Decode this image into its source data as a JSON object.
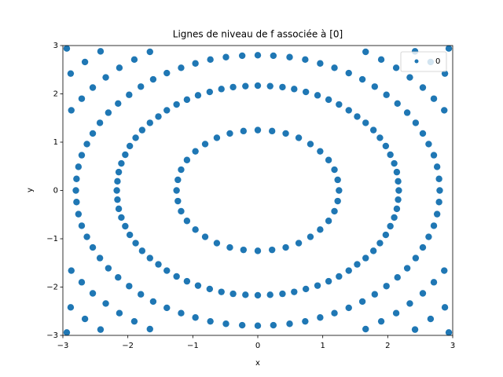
{
  "chart_data": {
    "type": "scatter",
    "title": "Lignes de niveau de f associée à [0]",
    "x_label": "x",
    "y_label": "y",
    "xlim": [
      -3,
      3
    ],
    "ylim": [
      -3,
      3
    ],
    "xticks": [
      {
        "value": -3,
        "label": "−3"
      },
      {
        "value": -2,
        "label": "−2"
      },
      {
        "value": -1,
        "label": "−1"
      },
      0,
      1,
      2,
      3
    ],
    "yticks": [
      {
        "value": -3,
        "label": "−3"
      },
      {
        "value": -2,
        "label": "−2"
      },
      {
        "value": -1,
        "label": "−1"
      },
      0,
      1,
      2,
      3
    ],
    "legend": "upper right",
    "grid": false,
    "series": [
      {
        "name": "0",
        "color": "#1f77b4",
        "x": [
          1.25,
          1.23,
          1.18,
          1.09,
          0.96,
          0.81,
          0.63,
          0.43,
          0.22,
          0,
          -0.22,
          -0.43,
          -0.63,
          -0.81,
          -0.96,
          -1.09,
          -1.18,
          -1.23,
          -1.25,
          -1.23,
          -1.18,
          -1.09,
          -0.96,
          -0.81,
          -0.63,
          -0.43,
          -0.22,
          0,
          0.22,
          0.43,
          0.63,
          0.81,
          0.96,
          1.09,
          1.18,
          1.23,
          2.17,
          2.16,
          2.14,
          2.1,
          2.04,
          1.97,
          1.88,
          1.78,
          1.66,
          1.53,
          1.4,
          1.25,
          1.09,
          0.92,
          0.74,
          0.56,
          0.38,
          0.19,
          0,
          -0.19,
          -0.38,
          -0.56,
          -0.74,
          -0.92,
          -1.09,
          -1.25,
          -1.4,
          -1.53,
          -1.66,
          -1.78,
          -1.88,
          -1.97,
          -2.04,
          -2.1,
          -2.14,
          -2.16,
          -2.17,
          -2.16,
          -2.14,
          -2.1,
          -2.04,
          -1.97,
          -1.88,
          -1.78,
          -1.66,
          -1.53,
          -1.4,
          -1.25,
          -1.09,
          -0.92,
          -0.74,
          -0.56,
          -0.38,
          -0.19,
          0,
          0.19,
          0.38,
          0.56,
          0.74,
          0.92,
          1.09,
          1.25,
          1.4,
          1.53,
          1.66,
          1.78,
          1.88,
          1.97,
          2.04,
          2.1,
          2.14,
          2.16,
          2.8,
          2.79,
          2.76,
          2.71,
          2.63,
          2.54,
          2.43,
          2.3,
          2.15,
          1.98,
          1.8,
          1.61,
          1.4,
          1.18,
          0.96,
          0.73,
          0.49,
          0.24,
          0,
          -0.24,
          -0.49,
          -0.73,
          -0.96,
          -1.18,
          -1.4,
          -1.61,
          -1.8,
          -1.98,
          -2.15,
          -2.3,
          -2.43,
          -2.54,
          -2.63,
          -2.71,
          -2.76,
          -2.79,
          -2.8,
          -2.79,
          -2.76,
          -2.71,
          -2.63,
          -2.54,
          -2.43,
          -2.3,
          -2.15,
          -1.98,
          -1.8,
          -1.61,
          -1.4,
          -1.18,
          -0.96,
          -0.73,
          -0.49,
          -0.24,
          0,
          0.24,
          0.49,
          0.73,
          0.96,
          1.18,
          1.4,
          1.61,
          1.8,
          1.98,
          2.15,
          2.3,
          2.43,
          2.54,
          2.63,
          2.71,
          2.76,
          2.79,
          2.87,
          2.71,
          2.54,
          2.34,
          2.13,
          1.9,
          1.66,
          -2.87,
          -2.71,
          -2.54,
          -2.34,
          -2.13,
          -1.9,
          -1.66,
          -2.87,
          -2.71,
          -2.54,
          -2.34,
          -2.13,
          -1.9,
          -1.66,
          2.87,
          2.71,
          2.54,
          2.34,
          2.13,
          1.9,
          1.66,
          2.88,
          2.66,
          2.42,
          -2.88,
          -2.66,
          -2.42,
          -2.88,
          -2.66,
          -2.42,
          2.88,
          2.66,
          2.42,
          2.94,
          -2.94,
          -2.94,
          2.94
        ],
        "y": [
          0,
          0.22,
          0.43,
          0.63,
          0.81,
          0.96,
          1.09,
          1.18,
          1.23,
          1.25,
          1.23,
          1.18,
          1.09,
          0.96,
          0.81,
          0.63,
          0.43,
          0.22,
          0,
          -0.22,
          -0.43,
          -0.63,
          -0.81,
          -0.96,
          -1.09,
          -1.18,
          -1.23,
          -1.25,
          -1.23,
          -1.18,
          -1.09,
          -0.96,
          -0.81,
          -0.63,
          -0.43,
          -0.22,
          0,
          0.19,
          0.38,
          0.56,
          0.74,
          0.92,
          1.09,
          1.25,
          1.4,
          1.53,
          1.66,
          1.78,
          1.88,
          1.97,
          2.04,
          2.1,
          2.14,
          2.16,
          2.17,
          2.16,
          2.14,
          2.1,
          2.04,
          1.97,
          1.88,
          1.78,
          1.66,
          1.53,
          1.4,
          1.25,
          1.09,
          0.92,
          0.74,
          0.56,
          0.38,
          0.19,
          0,
          -0.19,
          -0.38,
          -0.56,
          -0.74,
          -0.92,
          -1.09,
          -1.25,
          -1.4,
          -1.53,
          -1.66,
          -1.78,
          -1.88,
          -1.97,
          -2.04,
          -2.1,
          -2.14,
          -2.16,
          -2.17,
          -2.16,
          -2.14,
          -2.1,
          -2.04,
          -1.97,
          -1.88,
          -1.78,
          -1.66,
          -1.53,
          -1.4,
          -1.25,
          -1.09,
          -0.92,
          -0.74,
          -0.56,
          -0.38,
          -0.19,
          0,
          0.24,
          0.49,
          0.73,
          0.96,
          1.18,
          1.4,
          1.61,
          1.8,
          1.98,
          2.15,
          2.3,
          2.43,
          2.54,
          2.63,
          2.71,
          2.76,
          2.79,
          2.8,
          2.79,
          2.76,
          2.71,
          2.63,
          2.54,
          2.43,
          2.3,
          2.15,
          1.98,
          1.8,
          1.61,
          1.4,
          1.18,
          0.96,
          0.73,
          0.49,
          0.24,
          0,
          -0.24,
          -0.49,
          -0.73,
          -0.96,
          -1.18,
          -1.4,
          -1.61,
          -1.8,
          -1.98,
          -2.15,
          -2.3,
          -2.43,
          -2.54,
          -2.63,
          -2.71,
          -2.76,
          -2.79,
          -2.8,
          -2.79,
          -2.76,
          -2.71,
          -2.63,
          -2.54,
          -2.43,
          -2.3,
          -2.15,
          -1.98,
          -1.8,
          -1.61,
          -1.4,
          -1.18,
          -0.96,
          -0.73,
          -0.49,
          -0.24,
          1.66,
          1.9,
          2.13,
          2.34,
          2.54,
          2.71,
          2.87,
          1.66,
          1.9,
          2.13,
          2.34,
          2.54,
          2.71,
          2.87,
          -1.66,
          -1.9,
          -2.13,
          -2.34,
          -2.54,
          -2.71,
          -2.87,
          -1.66,
          -1.9,
          -2.13,
          -2.34,
          -2.54,
          -2.71,
          -2.87,
          2.42,
          2.66,
          2.88,
          2.42,
          2.66,
          2.88,
          -2.42,
          -2.66,
          -2.88,
          -2.42,
          -2.66,
          -2.88,
          2.94,
          2.94,
          -2.94,
          -2.94
        ]
      }
    ]
  }
}
